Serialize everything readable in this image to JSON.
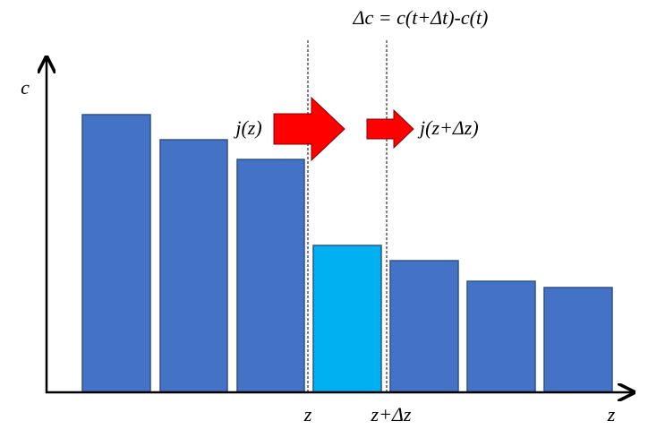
{
  "formula": "Δc = c(t+Δt)-c(t)",
  "y_axis_label": "c",
  "x_axis_label": "z",
  "flux_in": "j(z)",
  "flux_out": "j(z+Δz)",
  "boundary_labels": [
    "z",
    "z+Δz"
  ]
}
